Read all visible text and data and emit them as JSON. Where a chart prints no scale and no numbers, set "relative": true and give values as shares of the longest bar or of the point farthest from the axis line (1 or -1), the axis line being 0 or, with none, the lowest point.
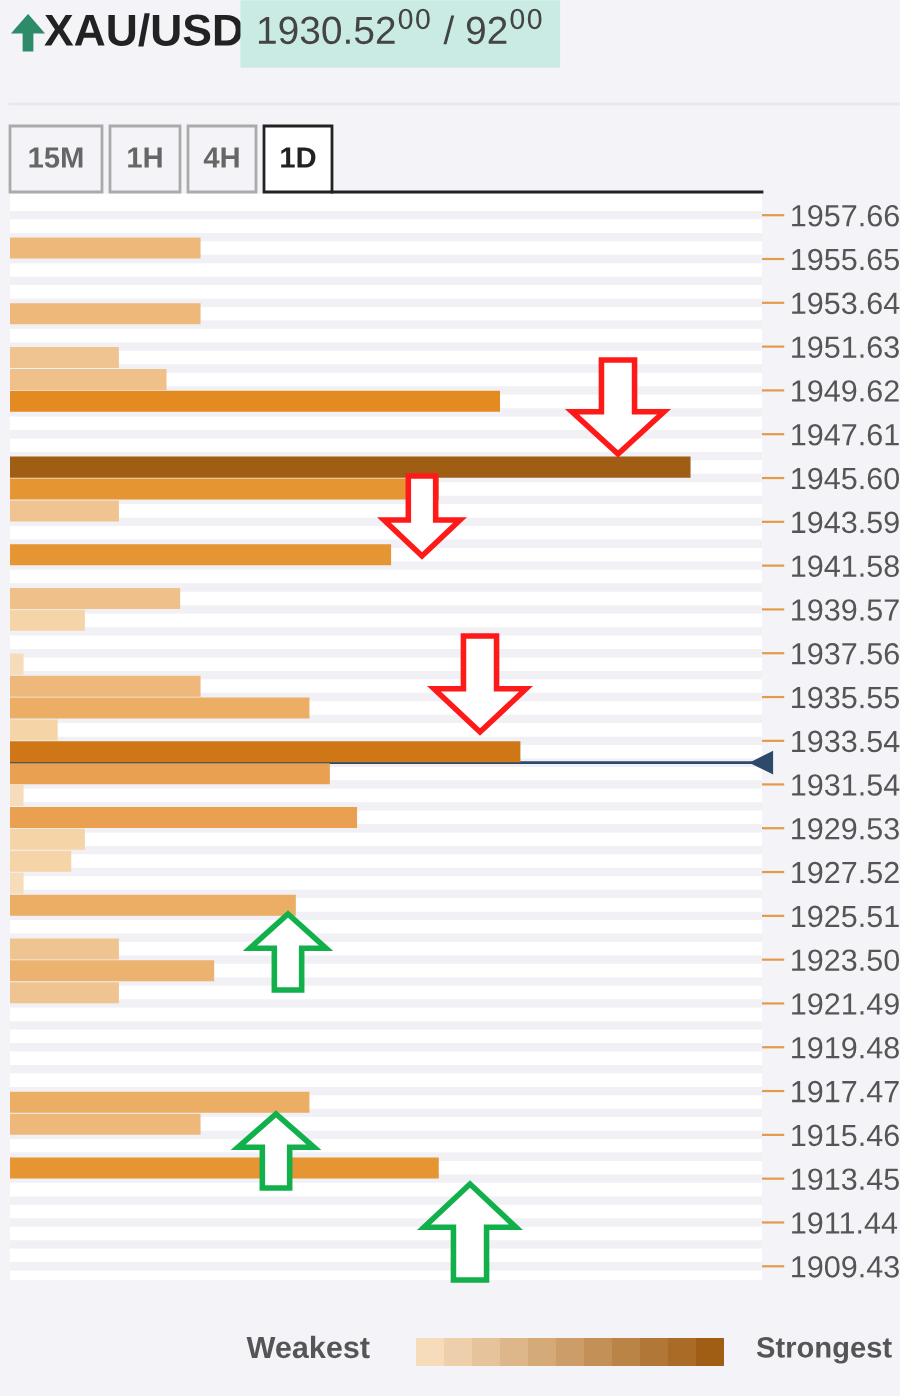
{
  "chart_data": {
    "type": "bar",
    "orientation": "horizontal",
    "relative": true,
    "title": "XAU/USD",
    "subtitle": "1930.52$^{00}$ / 92$^{00}$",
    "x": [
      1956.15,
      1953.14,
      1951.13,
      1950.12,
      1949.12,
      1946.1,
      1945.1,
      1944.09,
      1942.08,
      1940.07,
      1939.07,
      1937.06,
      1936.05,
      1935.05,
      1934.04,
      1933.04,
      1932.03,
      1931.03,
      1930.02,
      1929.02,
      1928.01,
      1927.01,
      1926.0,
      1923.99,
      1922.99,
      1921.98,
      1916.96,
      1915.95,
      1913.94
    ],
    "values": [
      0.28,
      0.28,
      0.16,
      0.23,
      0.72,
      1,
      0.63,
      0.16,
      0.56,
      0.25,
      0.11,
      0.02,
      0.28,
      0.44,
      0.07,
      0.75,
      0.47,
      0.02,
      0.51,
      0.11,
      0.09,
      0.02,
      0.42,
      0.16,
      0.3,
      0.16,
      0.44,
      0.28,
      0.63
    ],
    "colors": [
      "#eeb87a",
      "#eeb87a",
      "#f0c490",
      "#f0c08a",
      "#e38a20",
      "#a05e14",
      "#e69533",
      "#f0c490",
      "#e69533",
      "#f0c08a",
      "#f5d4a8",
      "#f7dcbc",
      "#eeb87a",
      "#ecad64",
      "#f5d4a8",
      "#cf7716",
      "#e9a050",
      "#f7dcbc",
      "#e9a050",
      "#f5d4a8",
      "#f5d4a8",
      "#f7dcbc",
      "#ecad64",
      "#f0c490",
      "#ecb370",
      "#f0c490",
      "#ecad64",
      "#eeb87a",
      "#e69533"
    ],
    "ylim": [
      1908.8,
      1958.66
    ],
    "yticks": [
      {
        "value": 1957.66,
        "label": "1957.66"
      },
      {
        "value": 1955.65,
        "label": "1955.65"
      },
      {
        "value": 1953.64,
        "label": "1953.64"
      },
      {
        "value": 1951.63,
        "label": "1951.63"
      },
      {
        "value": 1949.62,
        "label": "1949.62"
      },
      {
        "value": 1947.61,
        "label": "1947.61"
      },
      {
        "value": 1945.6,
        "label": "1945.60"
      },
      {
        "value": 1943.59,
        "label": "1943.59"
      },
      {
        "value": 1941.58,
        "label": "1941.58"
      },
      {
        "value": 1939.57,
        "label": "1939.57"
      },
      {
        "value": 1937.56,
        "label": "1937.56"
      },
      {
        "value": 1935.55,
        "label": "1935.55"
      },
      {
        "value": 1933.54,
        "label": "1933.54"
      },
      {
        "value": 1931.54,
        "label": "1931.54"
      },
      {
        "value": 1929.53,
        "label": "1929.53"
      },
      {
        "value": 1927.52,
        "label": "1927.52"
      },
      {
        "value": 1925.51,
        "label": "1925.51"
      },
      {
        "value": 1923.5,
        "label": "1923.50"
      },
      {
        "value": 1921.49,
        "label": "1921.49"
      },
      {
        "value": 1919.48,
        "label": "1919.48"
      },
      {
        "value": 1917.47,
        "label": "1917.47"
      },
      {
        "value": 1915.46,
        "label": "1915.46"
      },
      {
        "value": 1913.45,
        "label": "1913.45"
      },
      {
        "value": 1911.44,
        "label": "1911.44"
      },
      {
        "value": 1909.43,
        "label": "1909.43"
      }
    ],
    "ref_lines": [
      {
        "axis": "y",
        "value": 1932.54,
        "color": "#2d4a6b"
      }
    ],
    "grid": "y",
    "annotations": [
      "15M",
      "1H",
      "4H",
      "1D",
      "Weakest",
      "Strongest"
    ]
  }
}
